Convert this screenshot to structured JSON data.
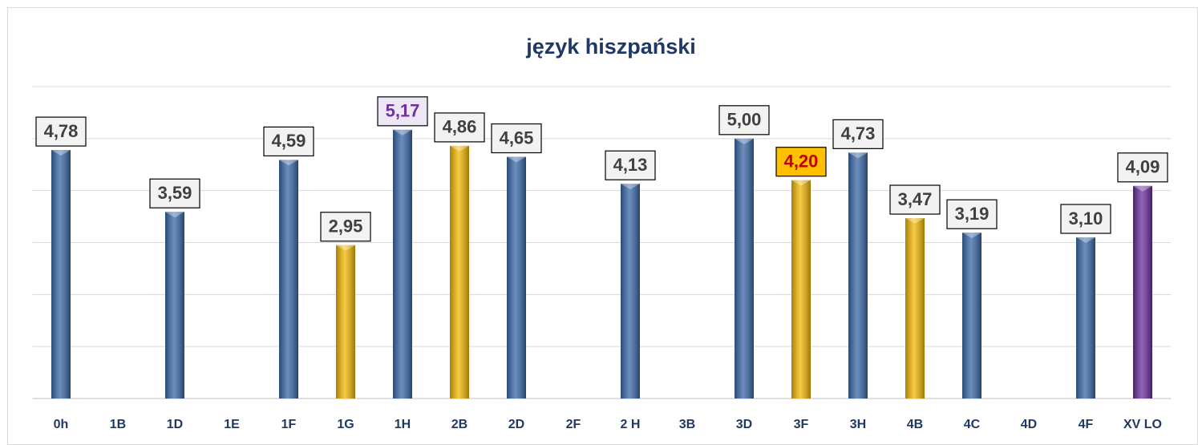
{
  "chart_data": {
    "type": "bar",
    "title": "język hiszpański",
    "categories": [
      "0h",
      "1B",
      "1D",
      "1E",
      "1F",
      "1G",
      "1H",
      "2B",
      "2D",
      "2F",
      "2 H",
      "3B",
      "3D",
      "3F",
      "3H",
      "4B",
      "4C",
      "4D",
      "4F",
      "XV LO"
    ],
    "values": [
      4.78,
      null,
      3.59,
      null,
      4.59,
      2.95,
      5.17,
      4.86,
      4.65,
      null,
      4.13,
      null,
      5.0,
      4.2,
      4.73,
      3.47,
      3.19,
      null,
      3.1,
      4.09
    ],
    "value_labels": [
      "4,78",
      null,
      "3,59",
      null,
      "4,59",
      "2,95",
      "5,17",
      "4,86",
      "4,65",
      null,
      "4,13",
      null,
      "5,00",
      "4,20",
      "4,73",
      "3,47",
      "3,19",
      null,
      "3,10",
      "4,09"
    ],
    "colors": [
      "#3a68a8",
      null,
      "#3a68a8",
      null,
      "#3a68a8",
      "#f2b705",
      "#3a68a8",
      "#f2b705",
      "#3a68a8",
      null,
      "#3a68a8",
      null,
      "#3a68a8",
      "#f2b705",
      "#3a68a8",
      "#f2b705",
      "#3a68a8",
      null,
      "#3a68a8",
      "#6a2d9c"
    ],
    "label_colors": [
      "#404040",
      null,
      "#404040",
      null,
      "#404040",
      "#404040",
      "#7030a0",
      "#404040",
      "#404040",
      null,
      "#404040",
      null,
      "#404040",
      "#c00000",
      "#404040",
      "#404040",
      "#404040",
      null,
      "#404040",
      "#404040"
    ],
    "label_fills": [
      "#f2f2f2",
      null,
      "#f2f2f2",
      null,
      "#f2f2f2",
      "#f2f2f2",
      "#ede6f5",
      "#f2f2f2",
      "#f2f2f2",
      null,
      "#f2f2f2",
      null,
      "#f2f2f2",
      "#ffc000",
      "#f2f2f2",
      "#f2f2f2",
      "#f2f2f2",
      null,
      "#f2f2f2",
      "#f2f2f2"
    ],
    "ylim": [
      0,
      6
    ],
    "yticks": [
      0,
      1,
      2,
      3,
      4,
      5,
      6
    ],
    "grid": true
  }
}
